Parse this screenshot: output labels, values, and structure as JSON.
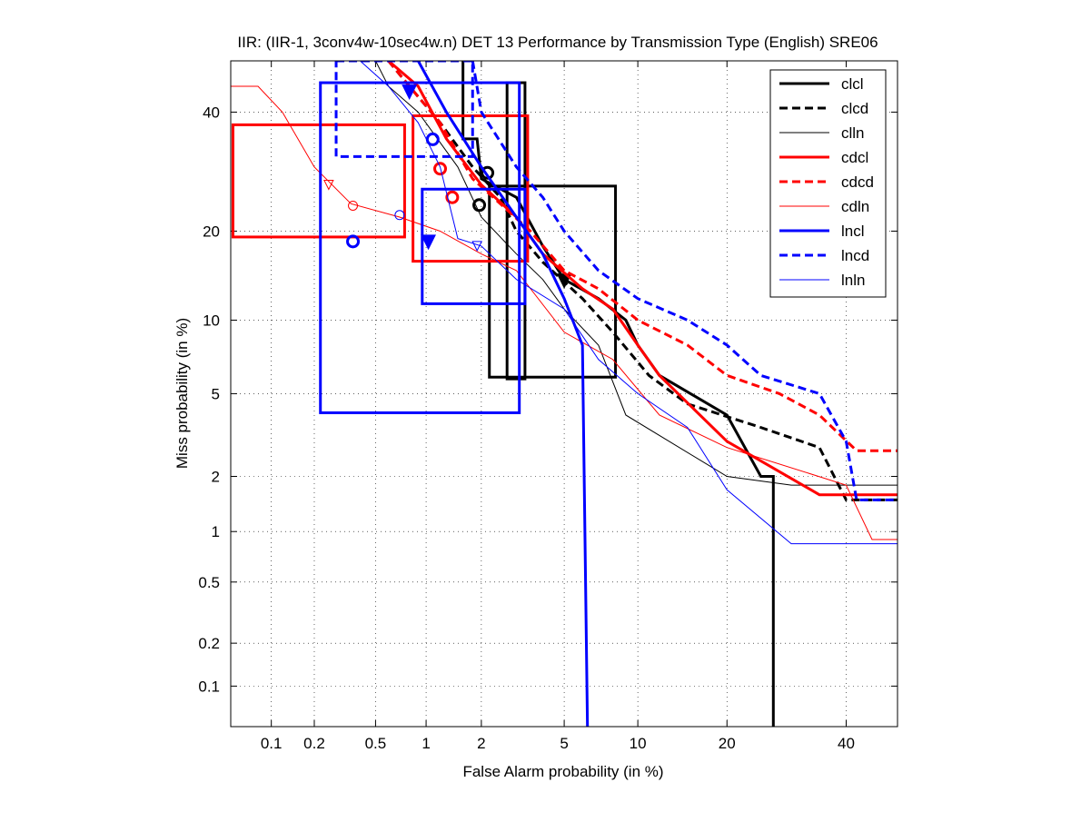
{
  "chart_data": {
    "type": "det",
    "title": "IIR: (IIR-1, 3conv4w-10sec4w.n) DET 13 Performance by Transmission Type (English) SRE06",
    "x_label": "False Alarm probability (in %)",
    "y_label": "Miss probability (in %)",
    "xlim": [
      0.05,
      50
    ],
    "ylim": [
      0.05,
      50
    ],
    "xticks": [
      0.1,
      0.2,
      0.5,
      1,
      2,
      5,
      10,
      20,
      40
    ],
    "yticks": [
      0.1,
      0.2,
      0.5,
      1,
      2,
      5,
      10,
      20,
      40
    ],
    "grid": true,
    "legend": "upper right",
    "series": [
      {
        "name": "clcl",
        "color": "#000000",
        "style": "solid",
        "width": 3,
        "x": [
          1.6,
          1.6,
          1.9,
          2,
          3,
          4,
          5,
          7,
          9,
          10,
          12,
          20,
          25,
          27,
          27
        ],
        "y": [
          50,
          35,
          35,
          28,
          25,
          18,
          14,
          12,
          10,
          8,
          6,
          4,
          2,
          2,
          0.05
        ],
        "boxes": [
          {
            "x": [
              2.7,
              3.3
            ],
            "y": [
              5.8,
              45.7
            ]
          },
          {
            "x": [
              2.2,
              8.2
            ],
            "y": [
              5.9,
              26.8
            ]
          }
        ],
        "markers": [
          {
            "x": 2.15,
            "y": 29,
            "shape": "circle"
          },
          {
            "x": 5,
            "y": 13.9,
            "shape": "triangle"
          }
        ]
      },
      {
        "name": "clcd",
        "color": "#000000",
        "style": "dashed",
        "width": 3,
        "x": [
          0.6,
          0.8,
          1.2,
          1.8,
          2.5,
          3,
          4,
          6,
          8,
          11,
          15,
          25,
          35,
          40,
          50
        ],
        "y": [
          50,
          45,
          38,
          30,
          25,
          20,
          16,
          12,
          9,
          6,
          4.5,
          3.5,
          2.8,
          1.5,
          1.5
        ],
        "boxes": [],
        "markers": [
          {
            "x": 1.95,
            "y": 23.8,
            "shape": "circle"
          }
        ]
      },
      {
        "name": "clln",
        "color": "#000000",
        "style": "solid",
        "width": 1,
        "x": [
          0.5,
          0.6,
          0.9,
          1.5,
          2,
          3,
          4,
          5,
          7,
          9,
          20,
          30,
          50
        ],
        "y": [
          50,
          45,
          40,
          30,
          22,
          17,
          14,
          11,
          8,
          4,
          2,
          1.8,
          1.8
        ],
        "boxes": [],
        "markers": []
      },
      {
        "name": "cdcl",
        "color": "#ff0000",
        "style": "solid",
        "width": 3,
        "x": [
          0.6,
          0.9,
          1.3,
          2,
          3,
          4,
          6,
          8,
          10,
          12,
          20,
          35,
          50
        ],
        "y": [
          50,
          45,
          35,
          27,
          22,
          17,
          13,
          11,
          8,
          6,
          3,
          1.6,
          1.6
        ],
        "boxes": [
          {
            "x": [
              0.052,
              0.75
            ],
            "y": [
              19.2,
              37.6
            ]
          },
          {
            "x": [
              0.84,
              3.4
            ],
            "y": [
              16.1,
              39.3
            ]
          }
        ],
        "markers": [
          {
            "x": 1.2,
            "y": 29.7,
            "shape": "circle"
          },
          {
            "x": 1.4,
            "y": 25,
            "shape": "circle"
          }
        ]
      },
      {
        "name": "cdcd",
        "color": "#ff0000",
        "style": "dashed",
        "width": 3,
        "x": [
          0.6,
          0.8,
          1.2,
          1.8,
          2.5,
          3.5,
          5,
          7,
          10,
          15,
          20,
          28,
          35,
          42,
          50
        ],
        "y": [
          50,
          45,
          38,
          28,
          24,
          20,
          15,
          13,
          10,
          8,
          6,
          5,
          4,
          2.7,
          2.7
        ],
        "boxes": [],
        "markers": []
      },
      {
        "name": "cdln",
        "color": "#ff0000",
        "style": "solid",
        "width": 1,
        "x": [
          0.05,
          0.08,
          0.12,
          0.2,
          0.35,
          0.7,
          1.2,
          2,
          3,
          5,
          8,
          12,
          20,
          40,
          45,
          50
        ],
        "y": [
          45,
          45,
          40,
          30,
          24,
          22,
          20,
          17,
          15,
          9,
          7,
          4,
          2.8,
          1.8,
          0.9,
          0.9
        ],
        "boxes": [],
        "markers": [
          {
            "x": 0.36,
            "y": 23.7,
            "shape": "open-circle"
          },
          {
            "x": 0.25,
            "y": 27,
            "shape": "open-triangle"
          }
        ]
      },
      {
        "name": "lncl",
        "color": "#0000ff",
        "style": "solid",
        "width": 3,
        "x": [
          0.9,
          1.3,
          2,
          3,
          4,
          5,
          6,
          6.3
        ],
        "y": [
          50,
          40,
          30,
          22,
          17,
          12,
          8,
          0.05
        ],
        "boxes": [
          {
            "x": [
              0.22,
              3.1
            ],
            "y": [
              4.1,
              45.7
            ]
          },
          {
            "x": [
              0.95,
              3.3
            ],
            "y": [
              11.5,
              26.3
            ]
          }
        ],
        "markers": [
          {
            "x": 0.36,
            "y": 18.6,
            "shape": "circle"
          },
          {
            "x": 1.09,
            "y": 34.9,
            "shape": "circle"
          },
          {
            "x": 1.03,
            "y": 18.6,
            "shape": "triangle"
          },
          {
            "x": 0.8,
            "y": 44,
            "shape": "triangle"
          }
        ]
      },
      {
        "name": "lncd",
        "color": "#0000ff",
        "style": "dashed",
        "width": 3,
        "x": [
          1.8,
          2,
          3,
          4,
          5,
          7,
          10,
          15,
          20,
          25,
          35,
          40,
          42,
          50
        ],
        "y": [
          50,
          40,
          30,
          25,
          20,
          15,
          12,
          10,
          8,
          6,
          5,
          3,
          1.5,
          1.5
        ],
        "boxes": [
          {
            "x": [
              0.28,
              1.8
            ],
            "y": [
              31.8,
              50
            ]
          }
        ],
        "markers": []
      },
      {
        "name": "lnln",
        "color": "#0000ff",
        "style": "solid",
        "width": 1,
        "x": [
          0.4,
          0.6,
          0.9,
          1.2,
          1.5,
          2,
          3,
          5,
          7,
          10,
          15,
          20,
          30,
          50
        ],
        "y": [
          50,
          45,
          38,
          30,
          19,
          18,
          14,
          11,
          7,
          5,
          3.5,
          1.7,
          0.85,
          0.85
        ],
        "boxes": [],
        "markers": [
          {
            "x": 0.7,
            "y": 22.3,
            "shape": "open-circle"
          },
          {
            "x": 1.9,
            "y": 18,
            "shape": "open-triangle"
          }
        ]
      }
    ]
  }
}
